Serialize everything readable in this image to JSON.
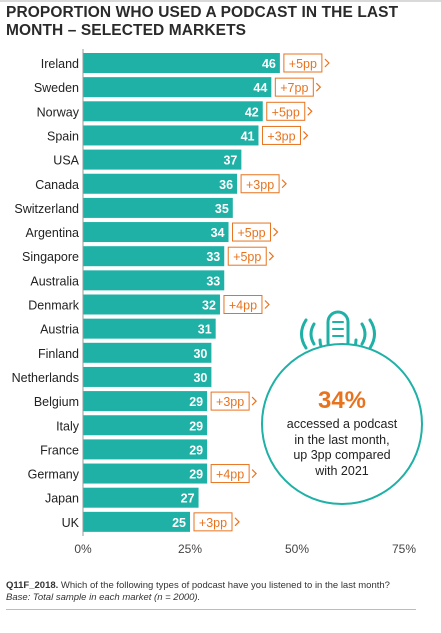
{
  "title": "PROPORTION WHO USED A PODCAST IN THE LAST MONTH – SELECTED MARKETS",
  "colors": {
    "bar": "#1fb0a6",
    "change": "#e8731f",
    "circle": "#1fb0a6"
  },
  "chart_data": {
    "type": "bar",
    "orientation": "horizontal",
    "categories": [
      "Ireland",
      "Sweden",
      "Norway",
      "Spain",
      "USA",
      "Canada",
      "Switzerland",
      "Argentina",
      "Singapore",
      "Australia",
      "Denmark",
      "Austria",
      "Finland",
      "Netherlands",
      "Belgium",
      "Italy",
      "France",
      "Germany",
      "Japan",
      "UK"
    ],
    "values": [
      46,
      44,
      42,
      41,
      37,
      36,
      35,
      34,
      33,
      33,
      32,
      31,
      30,
      30,
      29,
      29,
      29,
      29,
      27,
      25
    ],
    "changes": [
      "+5pp",
      "+7pp",
      "+5pp",
      "+3pp",
      "",
      "+3pp",
      "",
      "+5pp",
      "+5pp",
      "",
      "+4pp",
      "",
      "",
      "",
      "+3pp",
      "",
      "",
      "+4pp",
      "",
      "+3pp"
    ],
    "xlim": [
      0,
      75
    ],
    "xticks": [
      "0%",
      "25%",
      "50%",
      "75%"
    ],
    "grid": false,
    "legend": "none"
  },
  "callout": {
    "icon": "microphone-icon",
    "big_value": "34%",
    "text_lines": [
      "accessed a podcast",
      "in the last month,",
      "up 3pp compared",
      "with 2021"
    ]
  },
  "footnote": {
    "question_id": "Q11F_2018.",
    "question": " Which of the following types of podcast have you listened to in the last month?",
    "base": "Base: Total sample in each market (n = 2000)."
  }
}
